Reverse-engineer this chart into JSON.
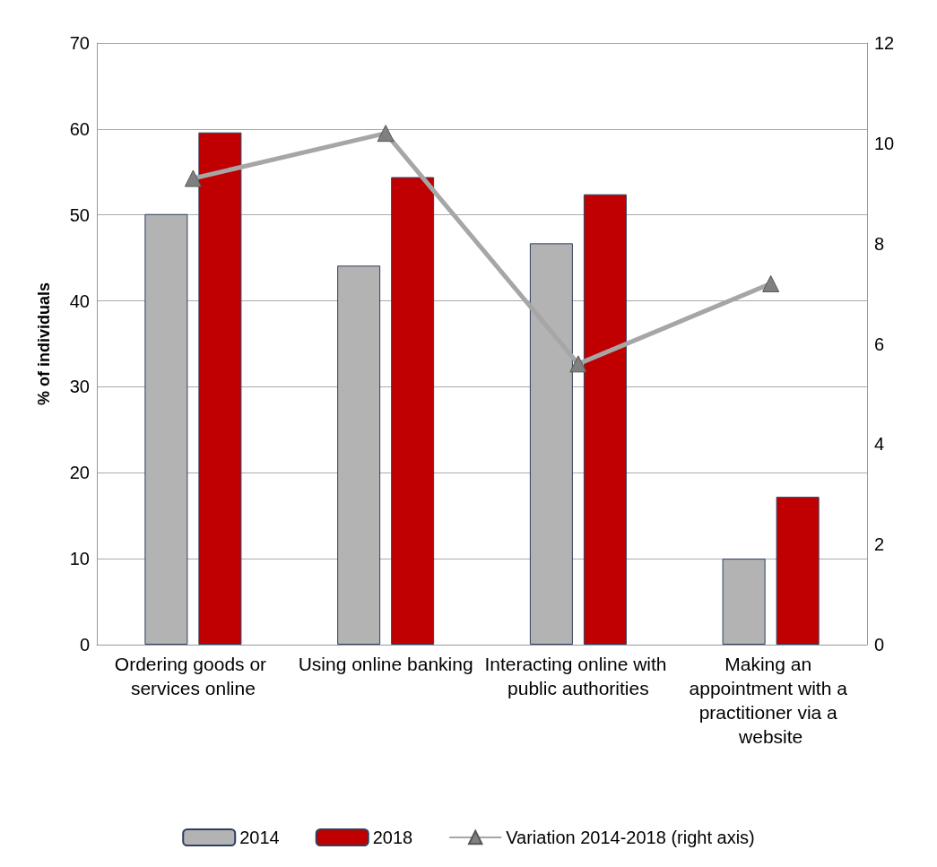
{
  "chart_data": {
    "type": "bar",
    "ylabel": "% of individuals",
    "categories": [
      "Ordering goods or services online",
      "Using online banking",
      "Interacting online with public authorities",
      "Making an appointment with a practitioner via a website"
    ],
    "series": [
      {
        "name": "2014",
        "color": "#b3b3b3",
        "values": [
          50.1,
          44.1,
          46.7,
          10.0
        ]
      },
      {
        "name": "2018",
        "color": "#c00000",
        "values": [
          59.6,
          54.4,
          52.4,
          17.2
        ]
      },
      {
        "name": "Variation 2014-2018 (right axis)",
        "type": "line",
        "axis": "y2",
        "color": "#a6a6a6",
        "values": [
          9.3,
          10.2,
          5.6,
          7.2
        ]
      }
    ],
    "ylim": [
      0,
      70
    ],
    "yticks": [
      0,
      10,
      20,
      30,
      40,
      50,
      60,
      70
    ],
    "y2lim": [
      0,
      12
    ],
    "y2ticks": [
      0,
      2,
      4,
      6,
      8,
      10,
      12
    ],
    "grid": "y",
    "legend": "bottom",
    "marker": "triangle",
    "line_style": "solid"
  }
}
